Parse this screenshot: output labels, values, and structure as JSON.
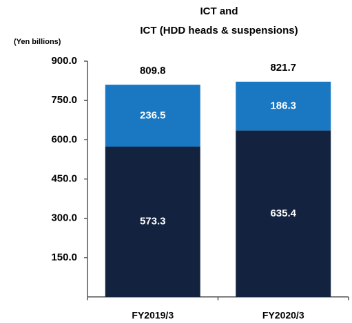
{
  "chart_data": {
    "type": "stacked_bar",
    "title": [
      "ICT and",
      "ICT (HDD heads & suspensions)"
    ],
    "y_label": "(Yen billions)",
    "categories": [
      "FY2019/3",
      "FY2020/3"
    ],
    "series": [
      {
        "color": "#13233f",
        "values": [
          573.3,
          635.4
        ]
      },
      {
        "color": "#1a78c2",
        "values": [
          236.5,
          186.3
        ]
      }
    ],
    "totals": [
      809.8,
      821.7
    ],
    "ylim": [
      0,
      900
    ],
    "yticks": [
      {
        "value": 150,
        "label": "150.0"
      },
      {
        "value": 300,
        "label": "300.0"
      },
      {
        "value": 450,
        "label": "450.0"
      },
      {
        "value": 600,
        "label": "600.0"
      },
      {
        "value": 750,
        "label": "750.0"
      },
      {
        "value": 900,
        "label": "900.0"
      }
    ]
  }
}
